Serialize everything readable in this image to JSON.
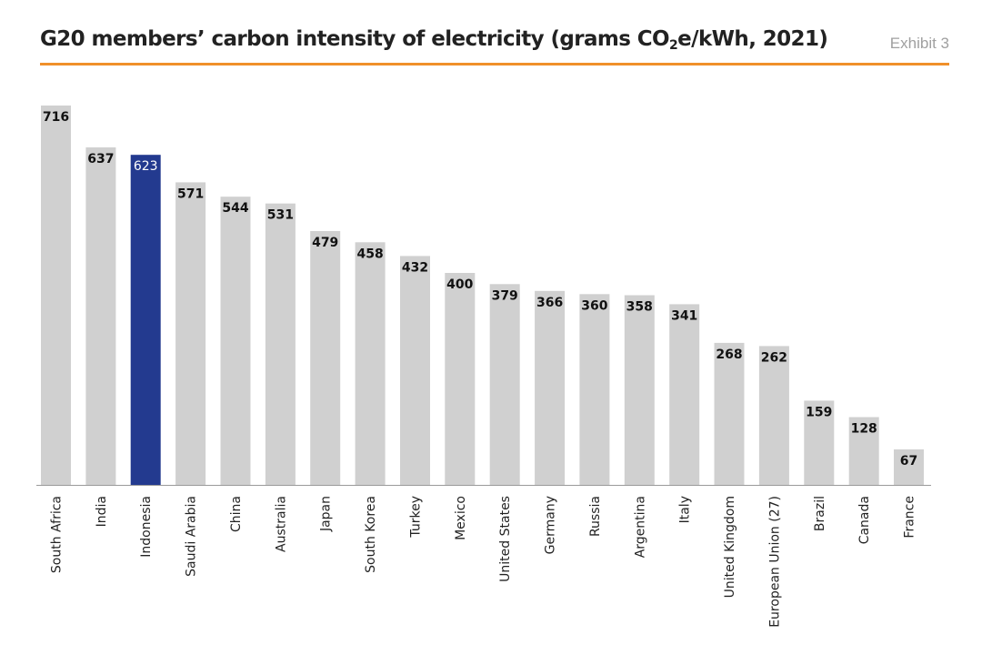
{
  "header": {
    "title_main": "G20 members’ carbon intensity of electricity (grams CO",
    "title_sub": "2",
    "title_end": "e/kWh, 2021)",
    "exhibit": "Exhibit 3",
    "rule_color": "#f0902a"
  },
  "colors": {
    "bar": "#d0d0d0",
    "highlight": "#233a8f",
    "label": "#111111",
    "highlight_label": "#ffffff"
  },
  "chart_data": {
    "type": "bar",
    "title": "G20 members’ carbon intensity of electricity (grams CO2e/kWh, 2021)",
    "xlabel": "",
    "ylabel": "",
    "ylim": [
      0,
      716
    ],
    "grid": false,
    "highlight_category": "Indonesia",
    "categories": [
      "South Africa",
      "India",
      "Indonesia",
      "Saudi Arabia",
      "China",
      "Australia",
      "Japan",
      "South Korea",
      "Turkey",
      "Mexico",
      "United States",
      "Germany",
      "Russia",
      "Argentina",
      "Italy",
      "United Kingdom",
      "European Union (27)",
      "Brazil",
      "Canada",
      "France"
    ],
    "values": [
      716,
      637,
      623,
      571,
      544,
      531,
      479,
      458,
      432,
      400,
      379,
      366,
      360,
      358,
      341,
      268,
      262,
      159,
      128,
      67
    ]
  }
}
